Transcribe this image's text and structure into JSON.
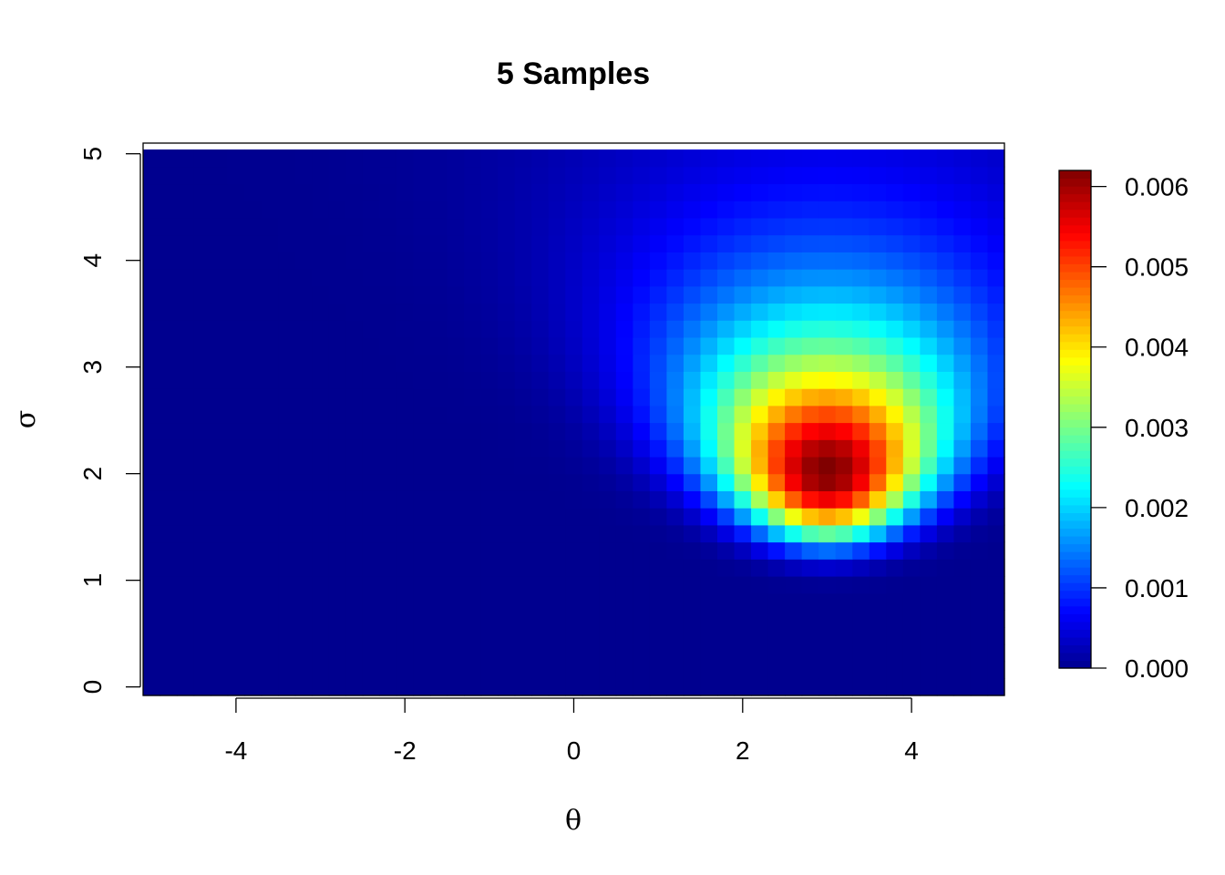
{
  "chart_data": {
    "type": "heatmap",
    "title": "5  Samples",
    "xlabel": "θ",
    "ylabel": "σ",
    "xlim": [
      -5.1,
      5.1
    ],
    "ylim": [
      -0.08,
      5.1
    ],
    "x_ticks": [
      -4,
      -2,
      0,
      2,
      4
    ],
    "x_tick_labels": [
      "-4",
      "-2",
      "0",
      "2",
      "4"
    ],
    "y_ticks": [
      0,
      1,
      2,
      3,
      4,
      5
    ],
    "y_tick_labels": [
      "0",
      "1",
      "2",
      "3",
      "4",
      "5"
    ],
    "grid": {
      "x_start": -5.1,
      "x_step": 0.2,
      "x_count": 51,
      "y_start": -0.08,
      "y_step": 0.16,
      "y_count": 32
    },
    "density_peak": {
      "theta": 3.0,
      "sigma": 2.55,
      "max_value": 0.0062
    },
    "colorbar": {
      "min": 0.0,
      "max": 0.0062,
      "ticks": [
        0.0,
        0.001,
        0.002,
        0.003,
        0.004,
        0.005,
        0.006
      ],
      "tick_labels": [
        "0.000",
        "0.001",
        "0.002",
        "0.003",
        "0.004",
        "0.005",
        "0.006"
      ],
      "palette": "jet",
      "placement": "right"
    },
    "colors": {
      "low": "#00008F",
      "mid_blue": "#0000FF",
      "cyan": "#00FFFF",
      "yellow": "#FFFF00",
      "red": "#FF0000",
      "high": "#800000"
    }
  }
}
